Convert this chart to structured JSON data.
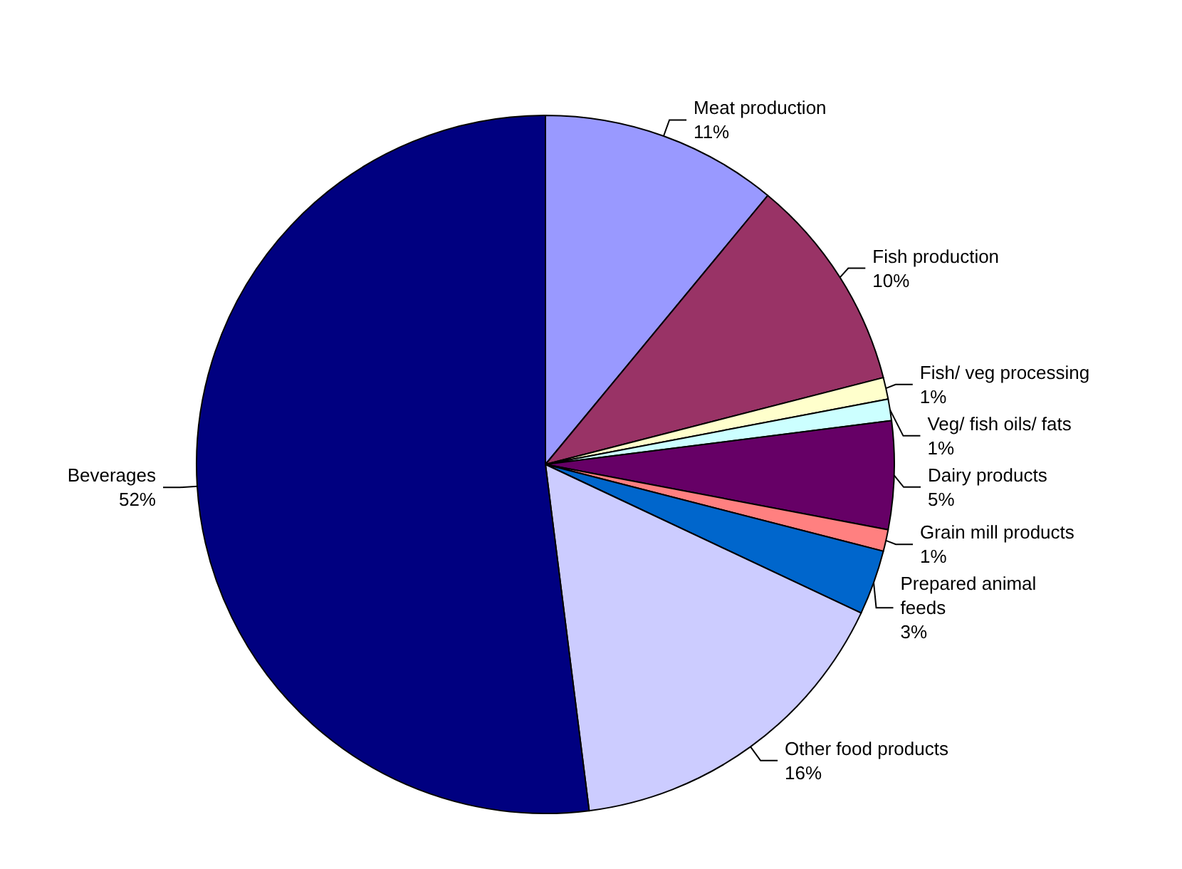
{
  "chart_data": {
    "type": "pie",
    "categories": [
      "Meat production",
      "Fish production",
      "Fish/ veg processing",
      "Veg/ fish oils/ fats",
      "Dairy products",
      "Grain mill products",
      "Prepared animal feeds",
      "Other food products",
      "Beverages"
    ],
    "values": [
      11,
      10,
      1,
      1,
      5,
      1,
      3,
      16,
      52
    ],
    "value_labels": [
      "11%",
      "10%",
      "1%",
      "1%",
      "5%",
      "1%",
      "3%",
      "16%",
      "52%"
    ],
    "colors": [
      "#9999ff",
      "#993366",
      "#ffffcc",
      "#ccffff",
      "#660066",
      "#ff8080",
      "#0066cc",
      "#ccccff",
      "#000080"
    ],
    "legend": false
  }
}
